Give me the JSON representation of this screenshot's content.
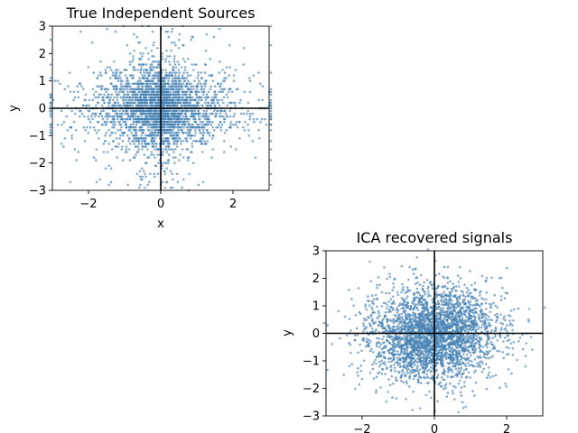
{
  "chart_data": [
    {
      "type": "scatter",
      "title": "True Independent Sources",
      "xlabel": "x",
      "ylabel": "y",
      "xlim": [
        -3,
        3
      ],
      "ylim": [
        -3,
        3
      ],
      "xticks": [
        -2,
        0,
        2
      ],
      "yticks": [
        -3,
        -2,
        -1,
        0,
        1,
        2,
        3
      ],
      "xtick_labels": [
        "−2",
        "0",
        "2"
      ],
      "ytick_labels": [
        "−3",
        "−2",
        "−1",
        "0",
        "1",
        "2",
        "3"
      ],
      "point_color": "#4682b4",
      "axis_lines_at_zero": true,
      "distribution": {
        "x": "Laplace-like, concentrated near 0, range about -2.9 to 2.9",
        "y": "discrete bands about every 0.1, mostly between -1.5 and 1.5, sparse out to 3",
        "approx_points": 3000
      }
    },
    {
      "type": "scatter",
      "title": "ICA recovered signals",
      "xlabel": "",
      "ylabel": "y",
      "xlim": [
        -3,
        3
      ],
      "ylim": [
        -3,
        3
      ],
      "xticks": [
        -2,
        0,
        2
      ],
      "yticks": [
        -3,
        -2,
        -1,
        0,
        1,
        2,
        3
      ],
      "xtick_labels": [
        "−2",
        "0",
        "2"
      ],
      "ytick_labels": [
        "−3",
        "−2",
        "−1",
        "0",
        "1",
        "2",
        "3"
      ],
      "point_color": "#4682b4",
      "axis_lines_at_zero": true,
      "distribution": {
        "x": "continuous, centered near 0, spread about -3 to 3",
        "y": "continuous, centered near 0, spread about -3 to 2.8",
        "approx_points": 3000
      }
    }
  ]
}
